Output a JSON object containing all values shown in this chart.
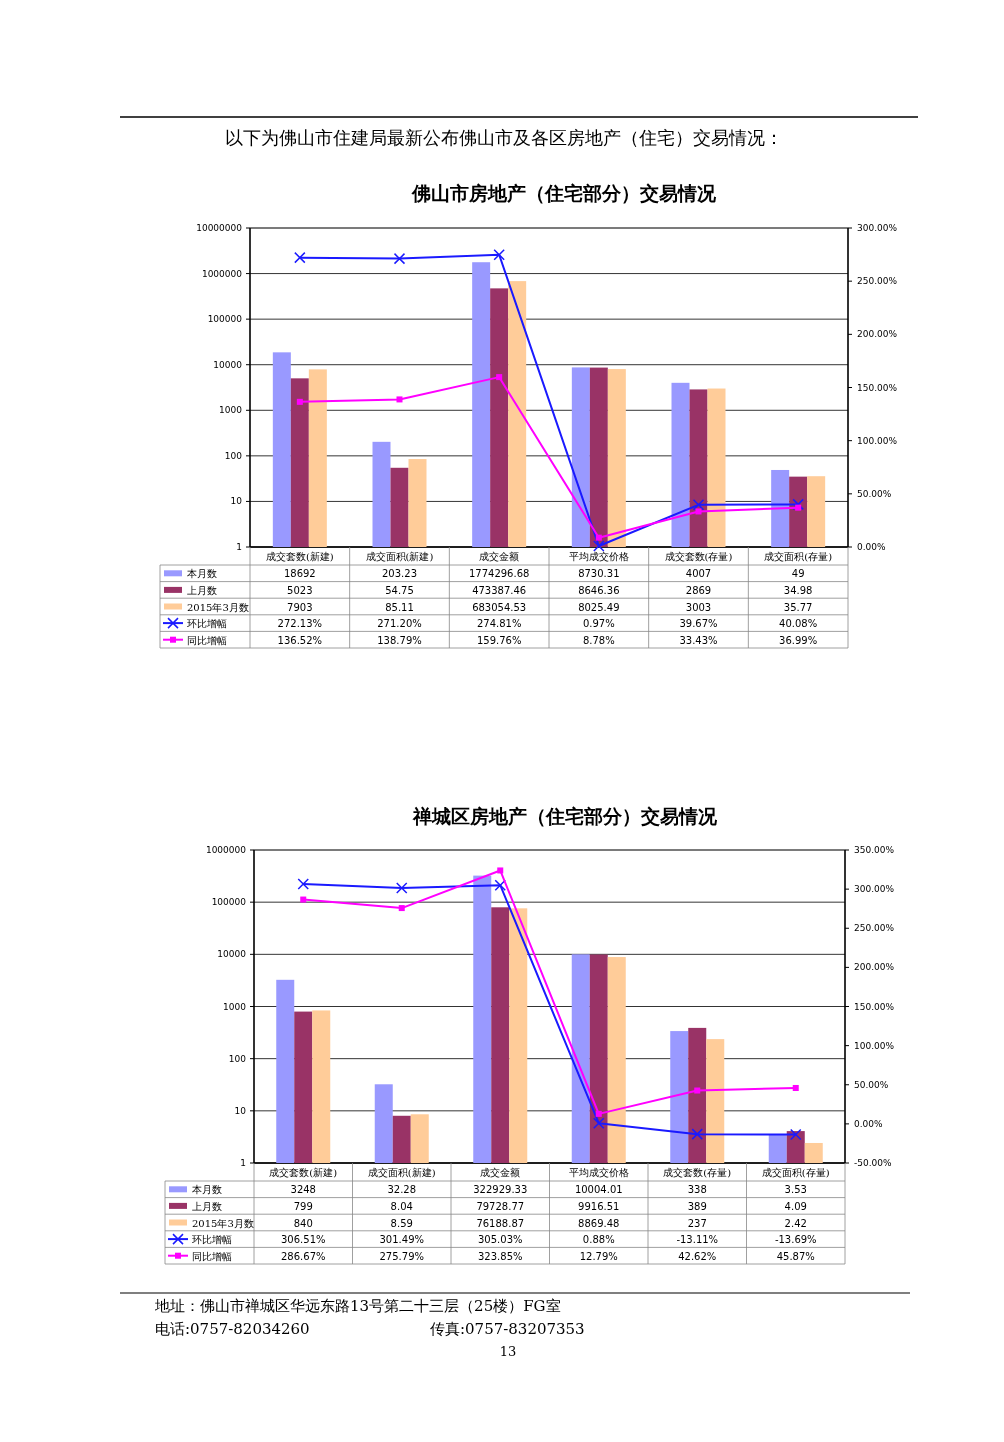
{
  "chart_data": [
    {
      "type": "bar",
      "title": "佛山市房地产（住宅部分）交易情况",
      "annotations": [
        "以下为佛山市住建局最新公布佛山市及各区房地产（住宅）交易情况："
      ],
      "categories": [
        "成交套数(新建)",
        "成交面积(新建)",
        "成交金额",
        "平均成交价格",
        "成交套数(存量)",
        "成交面积(存量)"
      ],
      "log": "y",
      "grid": "y",
      "legend": "bottom",
      "ylim": [
        1,
        10000000
      ],
      "yticks": [
        1,
        10,
        100,
        1000,
        10000,
        100000,
        1000000,
        10000000
      ],
      "y2lim": [
        0,
        300
      ],
      "y2ticks": [
        {
          "value": 0,
          "label": "0.00%"
        },
        {
          "value": 50,
          "label": "50.00%"
        },
        {
          "value": 100,
          "label": "100.00%"
        },
        {
          "value": 150,
          "label": "150.00%"
        },
        {
          "value": 200,
          "label": "200.00%"
        },
        {
          "value": 250,
          "label": "250.00%"
        },
        {
          "value": 300,
          "label": "300.00%"
        }
      ],
      "series": [
        {
          "name": "本月数",
          "color": "#9999ff",
          "values": [
            18692,
            203.23,
            1774296.68,
            8730.31,
            4007,
            49
          ],
          "value_labels": [
            "18692",
            "203.23",
            "1774296.68",
            "8730.31",
            "4007",
            "49"
          ]
        },
        {
          "name": "上月数",
          "color": "#993366",
          "values": [
            5023,
            54.75,
            473387.46,
            8646.36,
            2869,
            34.98
          ],
          "value_labels": [
            "5023",
            "54.75",
            "473387.46",
            "8646.36",
            "2869",
            "34.98"
          ]
        },
        {
          "name": "2015年3月数",
          "color": "#ffcc99",
          "values": [
            7903,
            85.11,
            683054.53,
            8025.49,
            3003,
            35.77
          ],
          "value_labels": [
            "7903",
            "85.11",
            "683054.53",
            "8025.49",
            "3003",
            "35.77"
          ]
        },
        {
          "name": "环比增幅",
          "type": "line",
          "axis": "y2",
          "marker": "cross",
          "color": "#1a1aff",
          "values": [
            272.13,
            271.2,
            274.81,
            0.97,
            39.67,
            40.08
          ],
          "value_labels": [
            "272.13%",
            "271.20%",
            "274.81%",
            "0.97%",
            "39.67%",
            "40.08%"
          ]
        },
        {
          "name": "同比增幅",
          "type": "line",
          "axis": "y2",
          "marker": "square",
          "color": "#ff00ff",
          "values": [
            136.52,
            138.79,
            159.76,
            8.78,
            33.43,
            36.99
          ],
          "value_labels": [
            "136.52%",
            "138.79%",
            "159.76%",
            "8.78%",
            "33.43%",
            "36.99%"
          ]
        }
      ]
    },
    {
      "type": "bar",
      "title": "禅城区房地产（住宅部分）交易情况",
      "annotations": [
        "地址：佛山市禅城区华远东路13号第二十三层（25楼）FG室",
        "电话:0757-82034260",
        "传真:0757-83207353",
        "13"
      ],
      "categories": [
        "成交套数(新建)",
        "成交面积(新建)",
        "成交金额",
        "平均成交价格",
        "成交套数(存量)",
        "成交面积(存量)"
      ],
      "log": "y",
      "grid": "y",
      "legend": "bottom",
      "ylim": [
        1,
        1000000
      ],
      "yticks": [
        1,
        10,
        100,
        1000,
        10000,
        100000,
        1000000
      ],
      "y2lim": [
        -50,
        350
      ],
      "y2ticks": [
        {
          "value": -50,
          "label": "-50.00%"
        },
        {
          "value": 0,
          "label": "0.00%"
        },
        {
          "value": 50,
          "label": "50.00%"
        },
        {
          "value": 100,
          "label": "100.00%"
        },
        {
          "value": 150,
          "label": "150.00%"
        },
        {
          "value": 200,
          "label": "200.00%"
        },
        {
          "value": 250,
          "label": "250.00%"
        },
        {
          "value": 300,
          "label": "300.00%"
        },
        {
          "value": 350,
          "label": "350.00%"
        }
      ],
      "series": [
        {
          "name": "本月数",
          "color": "#9999ff",
          "values": [
            3248,
            32.28,
            322929.33,
            10004.01,
            338,
            3.53
          ],
          "value_labels": [
            "3248",
            "32.28",
            "322929.33",
            "10004.01",
            "338",
            "3.53"
          ]
        },
        {
          "name": "上月数",
          "color": "#993366",
          "values": [
            799,
            8.04,
            79728.77,
            9916.51,
            389,
            4.09
          ],
          "value_labels": [
            "799",
            "8.04",
            "79728.77",
            "9916.51",
            "389",
            "4.09"
          ]
        },
        {
          "name": "2015年3月数",
          "color": "#ffcc99",
          "values": [
            840,
            8.59,
            76188.87,
            8869.48,
            237,
            2.42
          ],
          "value_labels": [
            "840",
            "8.59",
            "76188.87",
            "8869.48",
            "237",
            "2.42"
          ]
        },
        {
          "name": "环比增幅",
          "type": "line",
          "axis": "y2",
          "marker": "cross",
          "color": "#1a1aff",
          "values": [
            306.51,
            301.49,
            305.03,
            0.88,
            -13.11,
            -13.69
          ],
          "value_labels": [
            "306.51%",
            "301.49%",
            "305.03%",
            "0.88%",
            "-13.11%",
            "-13.69%"
          ]
        },
        {
          "name": "同比增幅",
          "type": "line",
          "axis": "y2",
          "marker": "square",
          "color": "#ff00ff",
          "values": [
            286.67,
            275.79,
            323.85,
            12.79,
            42.62,
            45.87
          ],
          "value_labels": [
            "286.67%",
            "275.79%",
            "323.85%",
            "12.79%",
            "42.62%",
            "45.87%"
          ]
        }
      ]
    }
  ]
}
